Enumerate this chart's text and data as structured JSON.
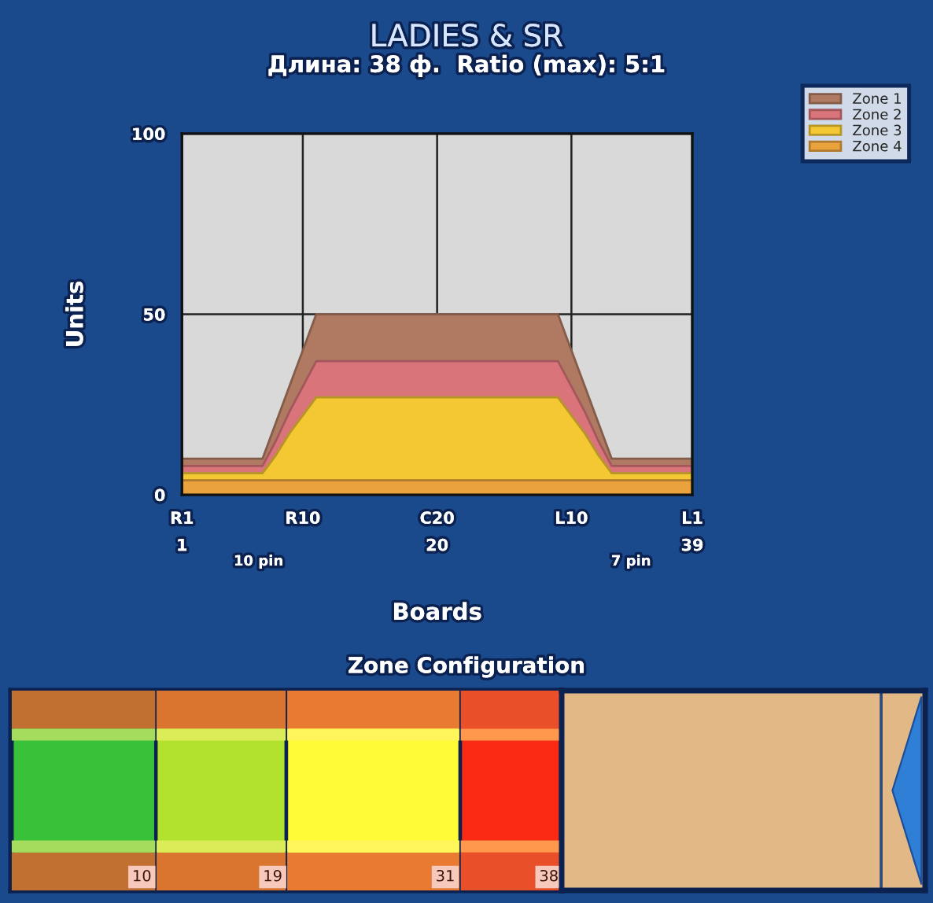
{
  "chart_data": [
    {
      "type": "area",
      "title": "LADIES & SR",
      "subtitle": "Длина: 38 ф.  Ratio (max): 5:1",
      "xlabel": "Boards",
      "ylabel": "Units",
      "categories": [
        "R1\n1",
        null,
        null,
        null,
        null,
        null,
        null,
        null,
        null,
        "R10",
        null,
        null,
        null,
        null,
        null,
        null,
        null,
        null,
        null,
        "C20\n20",
        null,
        null,
        null,
        null,
        null,
        null,
        null,
        null,
        null,
        "L10",
        null,
        null,
        null,
        null,
        null,
        null,
        null,
        null,
        "L1\n39"
      ],
      "series": [
        {
          "name": "Zone 1",
          "color": "#b07a62",
          "values": [
            10,
            10,
            10,
            10,
            10,
            10,
            10,
            20,
            30,
            40,
            50,
            50,
            50,
            50,
            50,
            50,
            50,
            50,
            50,
            50,
            50,
            50,
            50,
            50,
            50,
            50,
            50,
            50,
            50,
            40,
            30,
            20,
            10,
            10,
            10,
            10,
            10,
            10,
            10
          ]
        },
        {
          "name": "Zone 2",
          "color": "#d9747a",
          "values": [
            8,
            8,
            8,
            8,
            8,
            8,
            8,
            15,
            23,
            30,
            37,
            37,
            37,
            37,
            37,
            37,
            37,
            37,
            37,
            37,
            37,
            37,
            37,
            37,
            37,
            37,
            37,
            37,
            37,
            30,
            23,
            15,
            8,
            8,
            8,
            8,
            8,
            8,
            8
          ]
        },
        {
          "name": "Zone 3",
          "color": "#f3c832",
          "values": [
            6,
            6,
            6,
            6,
            6,
            6,
            6,
            11,
            17,
            22,
            27,
            27,
            27,
            27,
            27,
            27,
            27,
            27,
            27,
            27,
            27,
            27,
            27,
            27,
            27,
            27,
            27,
            27,
            27,
            22,
            17,
            11,
            6,
            6,
            6,
            6,
            6,
            6,
            6
          ]
        },
        {
          "name": "Zone 4",
          "color": "#e9a23c",
          "values": [
            4,
            4,
            4,
            4,
            4,
            4,
            4,
            4,
            4,
            4,
            4,
            4,
            4,
            4,
            4,
            4,
            4,
            4,
            4,
            4,
            4,
            4,
            4,
            4,
            4,
            4,
            4,
            4,
            4,
            4,
            4,
            4,
            4,
            4,
            4,
            4,
            4,
            4,
            4
          ]
        }
      ],
      "ylim": [
        0,
        100
      ],
      "yticks": [
        0,
        50,
        100
      ],
      "grid": true,
      "legend": "top right",
      "annotations": [
        "10 pin",
        "7 pin"
      ]
    },
    {
      "type": "other",
      "title": "Zone Configuration",
      "values": [
        10,
        19,
        31,
        38
      ],
      "colors": [
        "#38c23a",
        "#b2e22e",
        "#fdfc36",
        "#fb2a14"
      ],
      "data_labels": true
    }
  ]
}
